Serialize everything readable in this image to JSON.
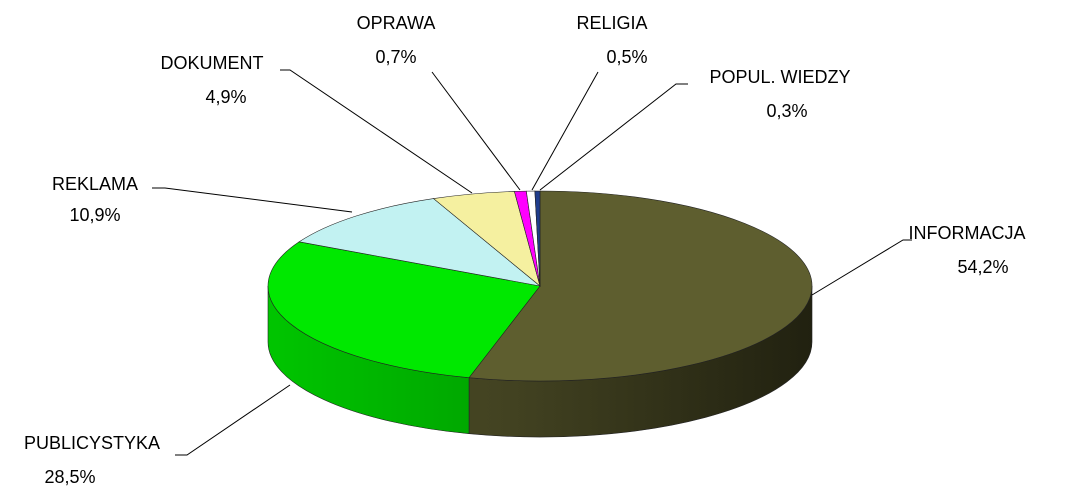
{
  "chart_data": {
    "type": "pie",
    "style": "3d",
    "categories": [
      "INFORMACJA",
      "PUBLICYSTYKA",
      "REKLAMA",
      "DOKUMENT",
      "OPRAWA",
      "RELIGIA",
      "POPUL. WIEDZY"
    ],
    "values": [
      54.2,
      28.5,
      10.9,
      4.9,
      0.7,
      0.5,
      0.3
    ],
    "value_labels": [
      "54,2%",
      "28,5%",
      "10,9%",
      "4,9%",
      "0,7%",
      "0,5%",
      "0,3%"
    ],
    "colors": [
      "#5e5e2f",
      "#00e800",
      "#c2f2f2",
      "#f5f0a0",
      "#ff00ff",
      "#ffffff",
      "#1f3d8c"
    ]
  }
}
